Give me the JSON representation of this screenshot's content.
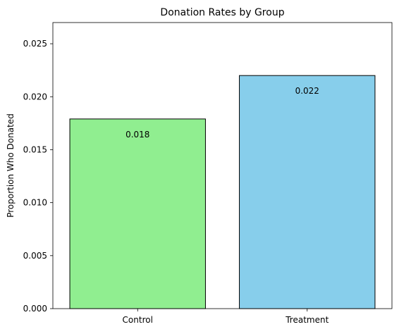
{
  "chart_data": {
    "type": "bar",
    "title": "Donation Rates by Group",
    "xlabel": "",
    "ylabel": "Proportion Who Donated",
    "categories": [
      "Control",
      "Treatment"
    ],
    "values": [
      0.0179,
      0.022
    ],
    "value_labels": [
      "0.018",
      "0.022"
    ],
    "colors": [
      "#90ee90",
      "#87ceeb"
    ],
    "edge_color": "#000000",
    "ylim": [
      0,
      0.027
    ],
    "yticks": [
      0.0,
      0.005,
      0.01,
      0.015,
      0.02,
      0.025
    ],
    "ytick_labels": [
      "0.000",
      "0.005",
      "0.010",
      "0.015",
      "0.020",
      "0.025"
    ],
    "grid": false,
    "legend": "none"
  }
}
